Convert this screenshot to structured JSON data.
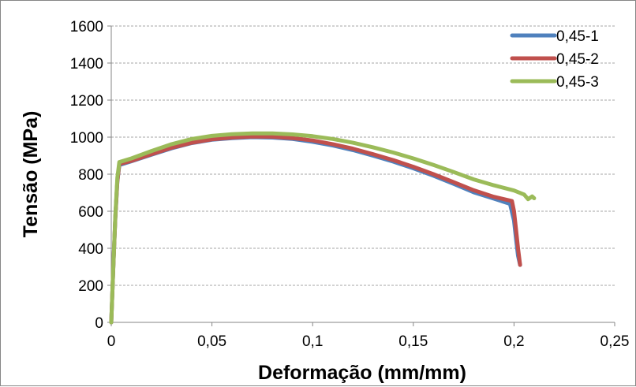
{
  "chart_data": {
    "type": "line",
    "title": "",
    "xlabel": "Deformação (mm/mm)",
    "ylabel": "Tensão (MPa)",
    "xlim": [
      0,
      0.25
    ],
    "ylim": [
      0,
      1600
    ],
    "x_ticks": [
      0,
      0.05,
      0.1,
      0.15,
      0.2,
      0.25
    ],
    "x_tick_labels": [
      "0",
      "0,05",
      "0,1",
      "0,15",
      "0,2",
      "0,25"
    ],
    "y_ticks": [
      0,
      200,
      400,
      600,
      800,
      1000,
      1200,
      1400,
      1600
    ],
    "y_tick_labels": [
      "0",
      "200",
      "400",
      "600",
      "800",
      "1000",
      "1200",
      "1400",
      "1600"
    ],
    "grid": "horizontal-dashed",
    "legend": "top-right",
    "series": [
      {
        "name": "0,45-1",
        "color": "#4F81BD",
        "points": [
          [
            0,
            0
          ],
          [
            0.001,
            300
          ],
          [
            0.002,
            560
          ],
          [
            0.003,
            760
          ],
          [
            0.004,
            850
          ],
          [
            0.01,
            870
          ],
          [
            0.02,
            905
          ],
          [
            0.03,
            940
          ],
          [
            0.04,
            968
          ],
          [
            0.05,
            986
          ],
          [
            0.06,
            995
          ],
          [
            0.07,
            1000
          ],
          [
            0.08,
            998
          ],
          [
            0.09,
            990
          ],
          [
            0.1,
            975
          ],
          [
            0.11,
            955
          ],
          [
            0.12,
            930
          ],
          [
            0.13,
            900
          ],
          [
            0.14,
            868
          ],
          [
            0.15,
            832
          ],
          [
            0.16,
            792
          ],
          [
            0.17,
            748
          ],
          [
            0.18,
            702
          ],
          [
            0.19,
            668
          ],
          [
            0.198,
            640
          ],
          [
            0.2,
            550
          ],
          [
            0.201,
            450
          ],
          [
            0.202,
            360
          ],
          [
            0.203,
            310
          ]
        ]
      },
      {
        "name": "0,45-2",
        "color": "#C0504D",
        "points": [
          [
            0,
            0
          ],
          [
            0.001,
            300
          ],
          [
            0.002,
            560
          ],
          [
            0.003,
            760
          ],
          [
            0.004,
            855
          ],
          [
            0.01,
            872
          ],
          [
            0.02,
            908
          ],
          [
            0.03,
            943
          ],
          [
            0.04,
            970
          ],
          [
            0.05,
            988
          ],
          [
            0.06,
            998
          ],
          [
            0.07,
            1003
          ],
          [
            0.08,
            1002
          ],
          [
            0.09,
            995
          ],
          [
            0.1,
            982
          ],
          [
            0.11,
            962
          ],
          [
            0.12,
            938
          ],
          [
            0.13,
            908
          ],
          [
            0.14,
            876
          ],
          [
            0.15,
            840
          ],
          [
            0.16,
            800
          ],
          [
            0.17,
            757
          ],
          [
            0.18,
            713
          ],
          [
            0.19,
            678
          ],
          [
            0.199,
            655
          ],
          [
            0.2,
            600
          ],
          [
            0.201,
            500
          ],
          [
            0.202,
            400
          ],
          [
            0.203,
            310
          ]
        ]
      },
      {
        "name": "0,45-3",
        "color": "#9BBB59",
        "points": [
          [
            0,
            0
          ],
          [
            0.001,
            300
          ],
          [
            0.002,
            570
          ],
          [
            0.003,
            780
          ],
          [
            0.004,
            865
          ],
          [
            0.01,
            885
          ],
          [
            0.02,
            925
          ],
          [
            0.03,
            962
          ],
          [
            0.04,
            990
          ],
          [
            0.05,
            1007
          ],
          [
            0.06,
            1016
          ],
          [
            0.07,
            1020
          ],
          [
            0.08,
            1020
          ],
          [
            0.09,
            1015
          ],
          [
            0.1,
            1005
          ],
          [
            0.11,
            990
          ],
          [
            0.12,
            970
          ],
          [
            0.13,
            945
          ],
          [
            0.14,
            917
          ],
          [
            0.15,
            885
          ],
          [
            0.16,
            850
          ],
          [
            0.17,
            812
          ],
          [
            0.18,
            772
          ],
          [
            0.19,
            740
          ],
          [
            0.2,
            712
          ],
          [
            0.205,
            690
          ],
          [
            0.207,
            665
          ],
          [
            0.209,
            680
          ],
          [
            0.21,
            670
          ]
        ]
      }
    ]
  }
}
